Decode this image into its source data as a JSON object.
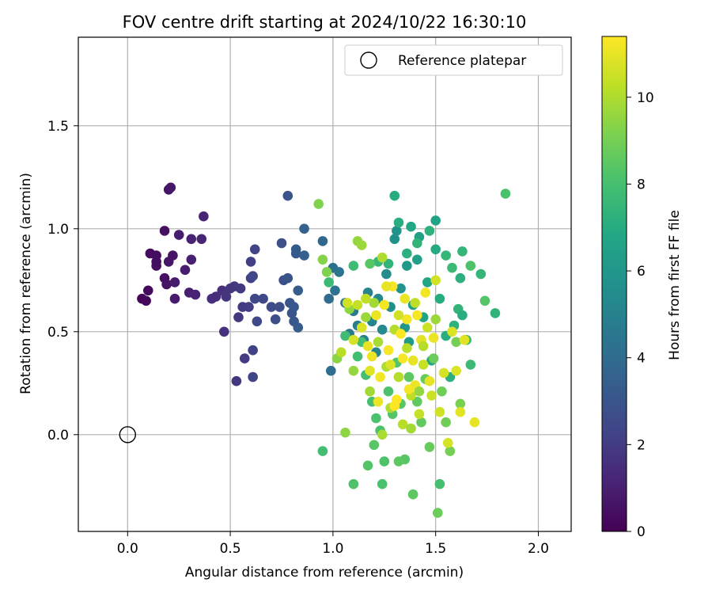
{
  "chart_data": {
    "type": "scatter",
    "title": "FOV centre drift starting at 2024/10/22 16:30:10",
    "xlabel": "Angular distance from reference (arcmin)",
    "ylabel": "Rotation from reference (arcmin)",
    "xlim": [
      -0.24,
      2.16
    ],
    "ylim": [
      -0.47,
      1.93
    ],
    "xticks": [
      "0.0",
      "0.5",
      "1.0",
      "1.5",
      "2.0"
    ],
    "yticks": [
      "0.0",
      "0.5",
      "1.0",
      "1.5"
    ],
    "xtick_values": [
      0.0,
      0.5,
      1.0,
      1.5,
      2.0
    ],
    "ytick_values": [
      0.0,
      0.5,
      1.0,
      1.5
    ],
    "grid": true,
    "legend": {
      "placement": "top-right",
      "entries": [
        "Reference platepar"
      ]
    },
    "reference_point": {
      "x": 0.0,
      "y": 0.0,
      "label": "Reference platepar"
    },
    "colorbar": {
      "label": "Hours from first FF file",
      "min": 0,
      "max": 11.4,
      "ticks": [
        "0",
        "2",
        "4",
        "6",
        "8",
        "10"
      ],
      "tick_values": [
        0,
        2,
        4,
        6,
        8,
        10
      ],
      "colormap": "viridis"
    },
    "series_xy": [
      [
        0.07,
        0.66,
        0.1
      ],
      [
        0.09,
        0.65,
        0.2
      ],
      [
        0.1,
        0.7,
        0.3
      ],
      [
        0.11,
        0.88,
        0.3
      ],
      [
        0.14,
        0.87,
        0.4
      ],
      [
        0.14,
        0.82,
        0.5
      ],
      [
        0.14,
        0.84,
        0.4
      ],
      [
        0.18,
        0.99,
        0.5
      ],
      [
        0.18,
        0.76,
        0.5
      ],
      [
        0.19,
        0.73,
        0.6
      ],
      [
        0.2,
        1.19,
        0.6
      ],
      [
        0.21,
        1.2,
        0.7
      ],
      [
        0.2,
        0.84,
        0.7
      ],
      [
        0.22,
        0.87,
        0.6
      ],
      [
        0.23,
        0.74,
        0.8
      ],
      [
        0.23,
        0.66,
        0.8
      ],
      [
        0.25,
        0.97,
        0.9
      ],
      [
        0.28,
        0.8,
        0.9
      ],
      [
        0.3,
        0.69,
        1.0
      ],
      [
        0.31,
        0.85,
        1.0
      ],
      [
        0.31,
        0.95,
        1.1
      ],
      [
        0.33,
        0.68,
        1.1
      ],
      [
        0.36,
        0.95,
        1.2
      ],
      [
        0.37,
        1.06,
        1.2
      ],
      [
        0.41,
        0.66,
        1.5
      ],
      [
        0.43,
        0.67,
        1.5
      ],
      [
        0.46,
        0.7,
        1.6
      ],
      [
        0.47,
        0.5,
        1.6
      ],
      [
        0.48,
        0.67,
        1.7
      ],
      [
        0.5,
        0.71,
        1.7
      ],
      [
        0.52,
        0.72,
        1.8
      ],
      [
        0.53,
        0.26,
        1.8
      ],
      [
        0.54,
        0.57,
        1.9
      ],
      [
        0.55,
        0.71,
        1.9
      ],
      [
        0.56,
        0.62,
        2.0
      ],
      [
        0.57,
        0.37,
        2.0
      ],
      [
        0.59,
        0.62,
        2.1
      ],
      [
        0.6,
        0.84,
        2.1
      ],
      [
        0.6,
        0.76,
        2.2
      ],
      [
        0.61,
        0.41,
        2.2
      ],
      [
        0.61,
        0.28,
        2.3
      ],
      [
        0.62,
        0.9,
        2.3
      ],
      [
        0.61,
        0.77,
        2.4
      ],
      [
        0.62,
        0.66,
        2.4
      ],
      [
        0.63,
        0.55,
        2.5
      ],
      [
        0.66,
        0.66,
        2.5
      ],
      [
        0.7,
        0.62,
        2.6
      ],
      [
        0.72,
        0.56,
        2.7
      ],
      [
        0.74,
        0.62,
        2.7
      ],
      [
        0.75,
        0.93,
        2.8
      ],
      [
        0.76,
        0.75,
        2.8
      ],
      [
        0.78,
        1.16,
        2.9
      ],
      [
        0.78,
        0.76,
        2.9
      ],
      [
        0.79,
        0.64,
        3.0
      ],
      [
        0.8,
        0.59,
        3.0
      ],
      [
        0.81,
        0.55,
        3.1
      ],
      [
        0.81,
        0.62,
        3.1
      ],
      [
        0.82,
        0.88,
        3.2
      ],
      [
        0.82,
        0.9,
        3.2
      ],
      [
        0.83,
        0.7,
        3.3
      ],
      [
        0.83,
        0.52,
        3.3
      ],
      [
        0.86,
        0.87,
        3.4
      ],
      [
        0.86,
        1.0,
        3.5
      ],
      [
        0.95,
        0.94,
        3.8
      ],
      [
        0.98,
        0.66,
        4.0
      ],
      [
        0.99,
        0.31,
        4.1
      ],
      [
        1.0,
        0.81,
        4.2
      ],
      [
        1.01,
        0.7,
        4.3
      ],
      [
        1.03,
        0.79,
        4.4
      ],
      [
        1.06,
        0.64,
        4.5
      ],
      [
        1.08,
        0.49,
        4.6
      ],
      [
        1.1,
        0.6,
        4.7
      ],
      [
        1.12,
        0.53,
        4.8
      ],
      [
        1.15,
        0.46,
        4.9
      ],
      [
        1.17,
        0.69,
        5.0
      ],
      [
        1.19,
        0.55,
        5.1
      ],
      [
        1.21,
        0.4,
        5.2
      ],
      [
        1.22,
        0.66,
        5.3
      ],
      [
        1.24,
        0.51,
        5.4
      ],
      [
        1.26,
        0.78,
        5.5
      ],
      [
        1.28,
        0.62,
        5.6
      ],
      [
        1.3,
        0.95,
        5.7
      ],
      [
        1.31,
        0.99,
        5.8
      ],
      [
        1.33,
        0.71,
        5.9
      ],
      [
        1.35,
        0.52,
        6.0
      ],
      [
        1.36,
        0.82,
        6.1
      ],
      [
        1.37,
        0.45,
        6.2
      ],
      [
        1.39,
        0.63,
        6.3
      ],
      [
        1.41,
        0.85,
        6.4
      ],
      [
        1.42,
        0.96,
        6.5
      ],
      [
        1.44,
        0.57,
        6.6
      ],
      [
        1.46,
        0.74,
        6.7
      ],
      [
        1.48,
        0.36,
        6.8
      ],
      [
        1.5,
        0.9,
        6.9
      ],
      [
        1.52,
        0.66,
        7.0
      ],
      [
        1.55,
        0.48,
        7.1
      ],
      [
        1.57,
        0.28,
        7.2
      ],
      [
        1.59,
        0.53,
        7.3
      ],
      [
        1.61,
        0.61,
        7.4
      ],
      [
        1.63,
        0.89,
        7.5
      ],
      [
        1.65,
        0.46,
        7.6
      ],
      [
        1.67,
        0.34,
        7.7
      ],
      [
        1.3,
        1.16,
        7.0
      ],
      [
        1.32,
        1.03,
        7.1
      ],
      [
        1.38,
        1.01,
        6.8
      ],
      [
        1.5,
        1.04,
        6.6
      ],
      [
        1.47,
        0.99,
        7.3
      ],
      [
        1.41,
        0.93,
        7.4
      ],
      [
        1.55,
        0.87,
        7.5
      ],
      [
        1.36,
        0.88,
        7.2
      ],
      [
        1.27,
        0.83,
        7.4
      ],
      [
        1.22,
        0.84,
        7.6
      ],
      [
        0.98,
        0.74,
        7.7
      ],
      [
        1.1,
        0.82,
        7.8
      ],
      [
        0.95,
        -0.08,
        7.9
      ],
      [
        1.06,
        0.48,
        7.8
      ],
      [
        1.12,
        0.38,
        7.9
      ],
      [
        1.16,
        0.29,
        8.0
      ],
      [
        1.19,
        0.16,
        8.0
      ],
      [
        1.21,
        0.08,
        8.1
      ],
      [
        1.23,
        0.02,
        8.1
      ],
      [
        1.25,
        -0.13,
        8.2
      ],
      [
        1.27,
        0.21,
        8.2
      ],
      [
        1.29,
        0.1,
        8.3
      ],
      [
        1.31,
        0.35,
        8.3
      ],
      [
        1.33,
        0.15,
        8.4
      ],
      [
        1.35,
        -0.12,
        8.4
      ],
      [
        1.37,
        0.28,
        8.5
      ],
      [
        1.39,
        -0.29,
        8.5
      ],
      [
        1.41,
        0.16,
        8.6
      ],
      [
        1.43,
        0.06,
        8.6
      ],
      [
        1.45,
        0.27,
        8.7
      ],
      [
        1.47,
        -0.06,
        8.7
      ],
      [
        1.49,
        0.37,
        8.8
      ],
      [
        1.51,
        -0.38,
        8.8
      ],
      [
        1.53,
        0.21,
        8.9
      ],
      [
        1.55,
        0.06,
        8.9
      ],
      [
        1.57,
        -0.08,
        9.0
      ],
      [
        1.6,
        0.45,
        9.0
      ],
      [
        1.62,
        0.15,
        9.1
      ],
      [
        1.74,
        0.65,
        8.3
      ],
      [
        1.79,
        0.59,
        7.4
      ],
      [
        1.84,
        1.17,
        8.1
      ],
      [
        1.72,
        0.78,
        7.5
      ],
      [
        1.67,
        0.82,
        8.2
      ],
      [
        1.62,
        0.76,
        7.2
      ],
      [
        1.58,
        0.81,
        7.7
      ],
      [
        1.63,
        0.58,
        7.1
      ],
      [
        1.1,
        -0.24,
        8.2
      ],
      [
        1.24,
        -0.24,
        8.1
      ],
      [
        1.52,
        -0.24,
        8.0
      ],
      [
        1.17,
        -0.15,
        8.3
      ],
      [
        1.2,
        -0.05,
        8.4
      ],
      [
        1.32,
        -0.13,
        8.5
      ],
      [
        1.14,
        0.45,
        7.9
      ],
      [
        1.18,
        0.83,
        8.4
      ],
      [
        0.93,
        1.12,
        9.2
      ],
      [
        0.95,
        0.85,
        9.3
      ],
      [
        0.97,
        0.79,
        9.2
      ],
      [
        1.02,
        0.37,
        9.4
      ],
      [
        1.06,
        0.01,
        9.5
      ],
      [
        1.08,
        0.61,
        9.5
      ],
      [
        1.1,
        0.31,
        9.6
      ],
      [
        1.12,
        0.94,
        9.6
      ],
      [
        1.14,
        0.92,
        9.7
      ],
      [
        1.16,
        0.57,
        9.7
      ],
      [
        1.18,
        0.21,
        9.8
      ],
      [
        1.2,
        0.64,
        9.8
      ],
      [
        1.22,
        0.45,
        9.9
      ],
      [
        1.24,
        0.0,
        9.9
      ],
      [
        1.26,
        0.33,
        10.0
      ],
      [
        1.28,
        0.13,
        10.0
      ],
      [
        1.3,
        0.51,
        10.1
      ],
      [
        1.32,
        0.28,
        10.1
      ],
      [
        1.34,
        0.05,
        10.2
      ],
      [
        1.36,
        0.42,
        10.2
      ],
      [
        1.38,
        0.19,
        10.3
      ],
      [
        1.4,
        0.64,
        10.3
      ],
      [
        1.42,
        0.1,
        10.4
      ],
      [
        1.44,
        0.34,
        10.4
      ],
      [
        1.46,
        0.52,
        10.5
      ],
      [
        1.48,
        0.19,
        10.5
      ],
      [
        1.5,
        0.75,
        10.6
      ],
      [
        1.52,
        0.11,
        10.6
      ],
      [
        1.54,
        0.3,
        10.7
      ],
      [
        1.56,
        -0.04,
        10.7
      ],
      [
        1.58,
        0.5,
        10.8
      ],
      [
        1.6,
        0.31,
        10.8
      ],
      [
        1.62,
        0.11,
        10.9
      ],
      [
        1.64,
        0.46,
        10.9
      ],
      [
        1.69,
        0.06,
        11.0
      ],
      [
        1.04,
        0.4,
        10.2
      ],
      [
        1.07,
        0.64,
        10.6
      ],
      [
        1.1,
        0.46,
        10.7
      ],
      [
        1.14,
        0.52,
        10.8
      ],
      [
        1.17,
        0.43,
        11.0
      ],
      [
        1.19,
        0.38,
        11.1
      ],
      [
        1.21,
        0.58,
        11.1
      ],
      [
        1.23,
        0.28,
        11.2
      ],
      [
        1.25,
        0.63,
        11.2
      ],
      [
        1.27,
        0.41,
        11.3
      ],
      [
        1.29,
        0.72,
        11.3
      ],
      [
        1.31,
        0.17,
        11.4
      ],
      [
        1.33,
        0.49,
        11.4
      ],
      [
        1.35,
        0.66,
        11.1
      ],
      [
        1.37,
        0.22,
        11.2
      ],
      [
        1.39,
        0.36,
        11.0
      ],
      [
        1.41,
        0.58,
        11.3
      ],
      [
        1.43,
        0.46,
        10.9
      ],
      [
        1.45,
        0.69,
        11.2
      ],
      [
        1.47,
        0.26,
        11.0
      ],
      [
        1.49,
        0.47,
        11.1
      ],
      [
        1.26,
        0.72,
        11.0
      ],
      [
        1.22,
        0.16,
        11.1
      ],
      [
        1.18,
        0.31,
        10.9
      ],
      [
        1.3,
        0.14,
        11.4
      ],
      [
        1.34,
        0.37,
        11.3
      ],
      [
        1.4,
        0.24,
        11.1
      ],
      [
        1.36,
        0.56,
        11.2
      ],
      [
        1.12,
        0.63,
        10.4
      ],
      [
        1.16,
        0.66,
        10.3
      ],
      [
        1.28,
        0.34,
        10.8
      ],
      [
        1.32,
        0.58,
        10.6
      ],
      [
        1.44,
        0.43,
        10.1
      ],
      [
        1.24,
        0.86,
        10.0
      ],
      [
        1.38,
        0.03,
        9.8
      ],
      [
        1.5,
        0.56,
        9.7
      ],
      [
        1.42,
        0.21,
        9.6
      ]
    ]
  }
}
